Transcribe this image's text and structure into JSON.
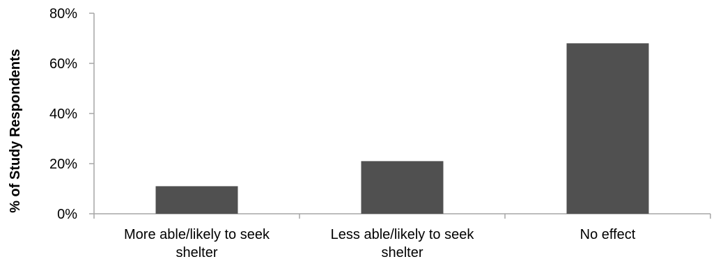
{
  "chart_data": {
    "type": "bar",
    "title": "",
    "xlabel": "",
    "ylabel": "% of Study Respondents",
    "categories": [
      [
        "More able/likely to seek",
        "shelter"
      ],
      [
        "Less able/likely to seek",
        "shelter"
      ],
      [
        "No effect"
      ]
    ],
    "values": [
      11,
      21,
      68
    ],
    "ylim": [
      0,
      80
    ],
    "yticks": [
      0,
      20,
      40,
      60,
      80
    ],
    "ytick_labels": [
      "0%",
      "20%",
      "40%",
      "60%",
      "80%"
    ],
    "grid": false,
    "legend": "none",
    "colors": {
      "bar": "#505050",
      "axis": "#a6a6a6"
    }
  }
}
